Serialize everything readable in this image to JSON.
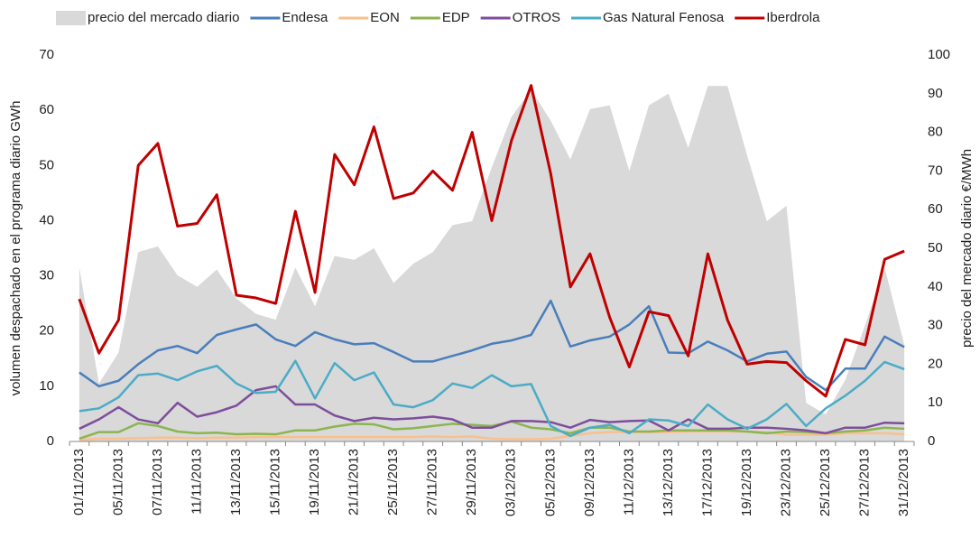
{
  "chart_data": {
    "type": "line",
    "categories": [
      "01/11/2013",
      null,
      "05/11/2013",
      null,
      "07/11/2013",
      null,
      "11/11/2013",
      null,
      "13/11/2013",
      null,
      "15/11/2013",
      null,
      "19/11/2013",
      null,
      "21/11/2013",
      null,
      "25/11/2013",
      null,
      "27/11/2013",
      null,
      "29/11/2013",
      null,
      "03/12/2013",
      null,
      "05/12/2013",
      null,
      "09/12/2013",
      null,
      "11/12/2013",
      null,
      "13/12/2013",
      null,
      "17/12/2013",
      null,
      "19/12/2013",
      null,
      "23/12/2013",
      null,
      "25/12/2013",
      null,
      "27/12/2013",
      null,
      "31/12/2013"
    ],
    "ylabel": "volumen despachado  en el programa diario  GWh",
    "y2label": "precio del mercado diario €/MWh",
    "ylim": [
      0,
      70
    ],
    "yticks": [
      0,
      10,
      20,
      30,
      40,
      50,
      60,
      70
    ],
    "y2lim": [
      0,
      100
    ],
    "y2ticks": [
      0,
      10,
      20,
      30,
      40,
      50,
      60,
      70,
      80,
      90,
      100
    ],
    "grid": false,
    "legend": "top",
    "series": [
      {
        "name": "precio del mercado diario",
        "style": "area",
        "axis": "y2",
        "color": "#d9d9d9",
        "values": [
          45,
          15,
          23,
          49,
          50.5,
          43,
          40,
          44.5,
          37,
          33,
          31.5,
          45,
          35,
          48,
          47,
          50,
          41,
          46,
          49,
          56,
          57,
          71,
          84,
          91,
          83,
          73,
          86,
          87,
          70,
          87,
          90,
          76,
          92,
          92,
          74,
          57,
          61,
          10,
          7,
          16,
          30,
          45,
          25
        ]
      },
      {
        "name": "Endesa",
        "color": "#4a7ebb",
        "values": [
          12.5,
          10,
          11,
          14,
          16.5,
          17.3,
          16,
          19.3,
          20.3,
          21.2,
          18.5,
          17.3,
          19.8,
          18.5,
          17.6,
          17.8,
          16.2,
          14.5,
          14.5,
          15.5,
          16.5,
          17.7,
          18.3,
          19.3,
          25.5,
          17.2,
          18.3,
          19,
          21.2,
          24.5,
          16.1,
          16,
          18.1,
          16.5,
          14.5,
          15.9,
          16.3,
          11.7,
          9.3,
          13.2,
          13.2,
          19,
          17.1
        ]
      },
      {
        "name": "EON",
        "color": "#f9c08e",
        "values": [
          0.3,
          0.5,
          0.5,
          0.6,
          0.7,
          0.7,
          0.6,
          0.7,
          0.7,
          0.8,
          0.8,
          0.8,
          0.8,
          0.8,
          0.8,
          0.8,
          0.8,
          0.8,
          0.9,
          0.8,
          0.9,
          0.5,
          0.4,
          0.4,
          0.5,
          1,
          1.5,
          1.7,
          1.7,
          1.7,
          1.7,
          1.8,
          1.8,
          1.8,
          1.8,
          1.7,
          1.2,
          1.2,
          1.2,
          1.5,
          1.5,
          1.5,
          1.3
        ]
      },
      {
        "name": "EDP",
        "color": "#8cb550",
        "values": [
          0.5,
          1.7,
          1.7,
          3.3,
          2.8,
          1.8,
          1.5,
          1.6,
          1.3,
          1.4,
          1.3,
          2,
          2,
          2.7,
          3.2,
          3.1,
          2.2,
          2.4,
          2.8,
          3.2,
          3,
          2.8,
          3.6,
          2.5,
          2.2,
          1.5,
          2.5,
          2.5,
          1.8,
          1.8,
          2,
          2,
          2,
          2,
          1.8,
          1.5,
          1.8,
          1.7,
          1.5,
          1.8,
          2,
          2.5,
          2.3
        ]
      },
      {
        "name": "OTROS",
        "color": "#7d4e9c",
        "values": [
          2.3,
          4,
          6.2,
          4,
          3.3,
          7,
          4.5,
          5.3,
          6.5,
          9.3,
          10,
          6.7,
          6.7,
          4.7,
          3.7,
          4.3,
          4,
          4.2,
          4.5,
          4,
          2.5,
          2.5,
          3.7,
          3.7,
          3.5,
          2.5,
          3.9,
          3.5,
          3.7,
          3.8,
          2,
          4,
          2.3,
          2.3,
          2.5,
          2.5,
          2.3,
          2,
          1.5,
          2.5,
          2.5,
          3.4,
          3.3
        ]
      },
      {
        "name": "Gas Natural Fenosa",
        "color": "#4bacc6",
        "values": [
          5.5,
          6,
          8,
          12,
          12.3,
          11.1,
          12.7,
          13.7,
          10.5,
          8.8,
          9,
          14.6,
          7.8,
          14.2,
          11.1,
          12.5,
          6.7,
          6.2,
          7.5,
          10.5,
          9.7,
          12,
          10,
          10.4,
          2.8,
          1,
          2.5,
          3,
          1.5,
          4,
          3.8,
          2.8,
          6.7,
          4,
          2.3,
          4,
          6.8,
          2.8,
          6,
          8.3,
          11,
          14.4,
          13.1
        ]
      },
      {
        "name": "Iberdrola",
        "color": "#c00000",
        "values": [
          25.8,
          16,
          22,
          50,
          54,
          39,
          39.5,
          44.7,
          26.5,
          26,
          25,
          41.7,
          27,
          52,
          46.5,
          57,
          44,
          45,
          49,
          45.5,
          56,
          40,
          54.5,
          64.5,
          48.5,
          28,
          34,
          22.5,
          13.5,
          23.5,
          22.8,
          15.5,
          34,
          22,
          14,
          14.5,
          14.3,
          11,
          8.2,
          18.5,
          17.5,
          33,
          34.5
        ]
      }
    ]
  }
}
